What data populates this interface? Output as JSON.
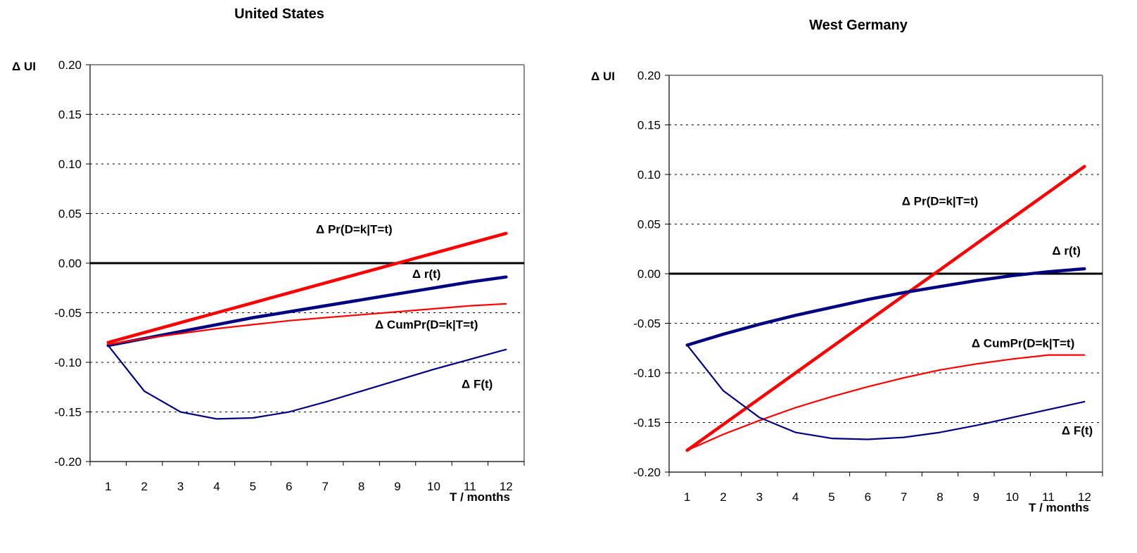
{
  "chart_data": [
    {
      "type": "line",
      "title": "United States",
      "ylabel": "Δ UI",
      "xlabel": "T / months",
      "ylim": [
        -0.2,
        0.2
      ],
      "yticks": [
        "0.20",
        "0.15",
        "0.10",
        "0.05",
        "0.00",
        "-0.05",
        "-0.10",
        "-0.15",
        "-0.20"
      ],
      "ytick_values": [
        0.2,
        0.15,
        0.1,
        0.05,
        0,
        -0.05,
        -0.1,
        -0.15,
        -0.2
      ],
      "categories": [
        "1",
        "2",
        "3",
        "4",
        "5",
        "6",
        "7",
        "8",
        "9",
        "10",
        "11",
        "12"
      ],
      "grid": true,
      "series": [
        {
          "name": "Δ Pr(D=k|T=t)",
          "color": "#ff0000",
          "values": [
            -0.08,
            -0.07,
            -0.06,
            -0.05,
            -0.04,
            -0.03,
            -0.02,
            -0.01,
            0.0,
            0.01,
            0.02,
            0.03
          ]
        },
        {
          "name": "Δ r(t)",
          "color": "#000080",
          "values": [
            -0.083,
            -0.076,
            -0.069,
            -0.062,
            -0.055,
            -0.049,
            -0.043,
            -0.037,
            -0.031,
            -0.025,
            -0.019,
            -0.014
          ]
        },
        {
          "name": "Δ CumPr(D=k|T=t)",
          "color": "#ff0000",
          "values": [
            -0.082,
            -0.076,
            -0.071,
            -0.066,
            -0.062,
            -0.058,
            -0.055,
            -0.052,
            -0.049,
            -0.046,
            -0.043,
            -0.041
          ]
        },
        {
          "name": "Δ F(t)",
          "color": "#000080",
          "values": [
            -0.083,
            -0.129,
            -0.15,
            -0.157,
            -0.156,
            -0.15,
            -0.14,
            -0.129,
            -0.118,
            -0.107,
            -0.097,
            -0.087
          ]
        }
      ],
      "labels": [
        {
          "text": "Δ Pr(D=k|T=t)",
          "x": 7.8,
          "y": 0.03
        },
        {
          "text": "Δ r(t)",
          "x": 9.8,
          "y": -0.015
        },
        {
          "text": "Δ CumPr(D=k|T=t)",
          "x": 9.8,
          "y": -0.066
        },
        {
          "text": "Δ F(t)",
          "x": 11.2,
          "y": -0.126
        }
      ]
    },
    {
      "type": "line",
      "title": "West Germany",
      "ylabel": "Δ UI",
      "xlabel": "T / months",
      "ylim": [
        -0.2,
        0.2
      ],
      "yticks": [
        "0.20",
        "0.15",
        "0.10",
        "0.05",
        "0.00",
        "-0.05",
        "-0.10",
        "-0.15",
        "-0.20"
      ],
      "ytick_values": [
        0.2,
        0.15,
        0.1,
        0.05,
        0,
        -0.05,
        -0.1,
        -0.15,
        -0.2
      ],
      "categories": [
        "1",
        "2",
        "3",
        "4",
        "5",
        "6",
        "7",
        "8",
        "9",
        "10",
        "11",
        "12"
      ],
      "grid": true,
      "series": [
        {
          "name": "Δ Pr(D=k|T=t)",
          "color": "#ff0000",
          "values": [
            -0.178,
            -0.152,
            -0.126,
            -0.1,
            -0.074,
            -0.048,
            -0.022,
            0.004,
            0.03,
            0.056,
            0.082,
            0.108
          ]
        },
        {
          "name": "Δ r(t)",
          "color": "#000080",
          "values": [
            -0.072,
            -0.061,
            -0.051,
            -0.042,
            -0.034,
            -0.026,
            -0.019,
            -0.013,
            -0.007,
            -0.002,
            0.002,
            0.005
          ]
        },
        {
          "name": "Δ CumPr(D=k|T=t)",
          "color": "#ff0000",
          "values": [
            -0.178,
            -0.162,
            -0.148,
            -0.135,
            -0.124,
            -0.114,
            -0.105,
            -0.097,
            -0.091,
            -0.086,
            -0.082,
            -0.082
          ]
        },
        {
          "name": "Δ F(t)",
          "color": "#000080",
          "values": [
            -0.072,
            -0.118,
            -0.145,
            -0.16,
            -0.166,
            -0.167,
            -0.165,
            -0.16,
            -0.153,
            -0.145,
            -0.137,
            -0.129
          ]
        }
      ],
      "labels": [
        {
          "text": "Δ Pr(D=k|T=t)",
          "x": 8.0,
          "y": 0.069
        },
        {
          "text": "Δ r(t)",
          "x": 11.5,
          "y": 0.019
        },
        {
          "text": "Δ CumPr(D=k|T=t)",
          "x": 10.3,
          "y": -0.074
        },
        {
          "text": "Δ F(t)",
          "x": 11.8,
          "y": -0.162
        }
      ]
    }
  ]
}
